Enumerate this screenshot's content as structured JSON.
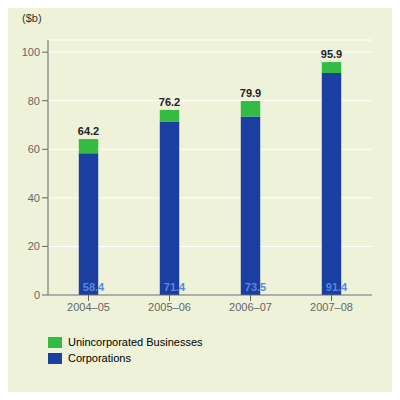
{
  "chart_data": {
    "type": "bar",
    "stacked": true,
    "categories": [
      "2004–05",
      "2005–06",
      "2006–07",
      "2007–08"
    ],
    "series": [
      {
        "name": "Corporations",
        "color": "#1a3fa0",
        "values": [
          58.4,
          71.4,
          73.5,
          91.4
        ]
      },
      {
        "name": "Unincorporated Businesses",
        "color": "#33bb44",
        "values": [
          5.8,
          4.8,
          6.4,
          4.5
        ]
      }
    ],
    "totals": [
      64.2,
      76.2,
      79.9,
      95.9
    ],
    "ylabel": "($b)",
    "ylim": [
      0,
      105
    ],
    "yticks": [
      0,
      20,
      40,
      60,
      80,
      100
    ],
    "grid": true,
    "data_labels": true,
    "legend": "bottom"
  }
}
